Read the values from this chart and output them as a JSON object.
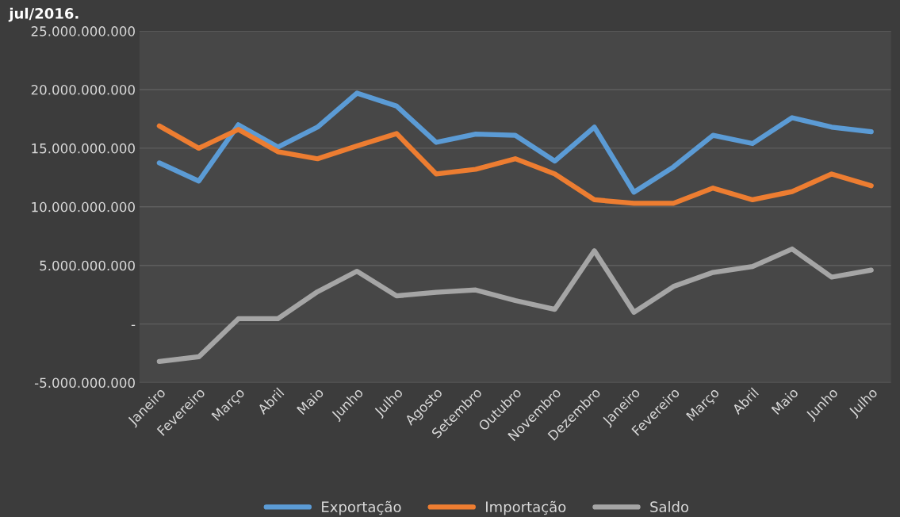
{
  "chart_data": {
    "type": "line",
    "title": "jul/2016.",
    "categories": [
      "Janeiro",
      "Fevereiro",
      "Março",
      "Abril",
      "Maio",
      "Junho",
      "Julho",
      "Agosto",
      "Setembro",
      "Outubro",
      "Novembro",
      "Dezembro",
      "Janeiro",
      "Fevereiro",
      "Março",
      "Abril",
      "Maio",
      "Junho",
      "Julho"
    ],
    "series": [
      {
        "name": "Exportação",
        "color": "#5b9bd5",
        "values": [
          13750000000,
          12200000000,
          17000000000,
          15100000000,
          16800000000,
          19700000000,
          18600000000,
          15500000000,
          16200000000,
          16100000000,
          13900000000,
          16800000000,
          11250000000,
          13400000000,
          16100000000,
          15400000000,
          17600000000,
          16800000000,
          16400000000
        ]
      },
      {
        "name": "Importação",
        "color": "#ed7d31",
        "values": [
          16900000000,
          15000000000,
          16600000000,
          14700000000,
          14100000000,
          15200000000,
          16250000000,
          12800000000,
          13200000000,
          14100000000,
          12800000000,
          10600000000,
          10300000000,
          10300000000,
          11600000000,
          10600000000,
          11300000000,
          12800000000,
          11800000000
        ]
      },
      {
        "name": "Saldo",
        "color": "#a5a5a5",
        "values": [
          -3200000000,
          -2800000000,
          450000000,
          450000000,
          2750000000,
          4500000000,
          2400000000,
          2700000000,
          2900000000,
          2000000000,
          1250000000,
          6250000000,
          1000000000,
          3200000000,
          4400000000,
          4900000000,
          6400000000,
          4000000000,
          4600000000
        ]
      }
    ],
    "ylim": [
      -5000000000,
      25000000000
    ],
    "yticks": [
      {
        "value": -5000000000,
        "label": "-5.000.000.000"
      },
      {
        "value": 0,
        "label": "-"
      },
      {
        "value": 5000000000,
        "label": "5.000.000.000"
      },
      {
        "value": 10000000000,
        "label": "10.000.000.000"
      },
      {
        "value": 15000000000,
        "label": "15.000.000.000"
      },
      {
        "value": 20000000000,
        "label": "20.000.000.000"
      },
      {
        "value": 25000000000,
        "label": "25.000.000.000"
      }
    ],
    "grid": "y",
    "legend": "bottom",
    "marker": "none",
    "line_style": "solid"
  }
}
